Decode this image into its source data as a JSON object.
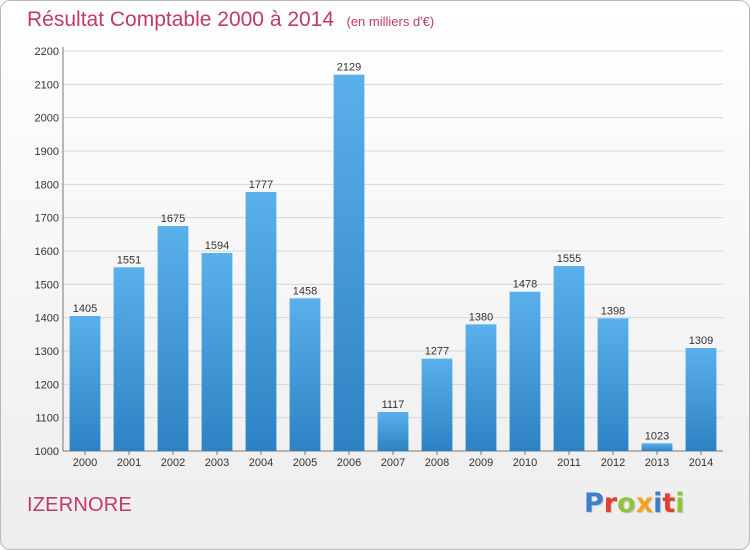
{
  "chart_data": {
    "type": "bar",
    "title": "Résultat Comptable 2000 à 2014",
    "subtitle": "(en milliers d'€)",
    "categories": [
      "2000",
      "2001",
      "2002",
      "2003",
      "2004",
      "2005",
      "2006",
      "2007",
      "2008",
      "2009",
      "2010",
      "2011",
      "2012",
      "2013",
      "2014"
    ],
    "values": [
      1405,
      1551,
      1675,
      1594,
      1777,
      1458,
      2129,
      1117,
      1277,
      1380,
      1478,
      1555,
      1398,
      1023,
      1309
    ],
    "ylim": [
      1000,
      2200
    ],
    "yticks": [
      1000,
      1100,
      1200,
      1300,
      1400,
      1500,
      1600,
      1700,
      1800,
      1900,
      2000,
      2100,
      2200
    ],
    "xlabel": "",
    "ylabel": "",
    "grid": true,
    "data_labels": true,
    "colors": {
      "bar_light": "#5ab0ea",
      "bar_dark": "#2d82c4",
      "title": "#c0396b",
      "grid": "#d6d6d6",
      "text": "#333333"
    }
  },
  "footer": {
    "commune": "IZERNORE"
  },
  "logo": {
    "text": "Proxiti",
    "letters": [
      {
        "ch": "P",
        "color": "#3a7fc7"
      },
      {
        "ch": "r",
        "color": "#e0402e"
      },
      {
        "ch": "o",
        "color": "#8cc63f"
      },
      {
        "ch": "x",
        "color": "#f2a31b"
      },
      {
        "ch": "i",
        "color": "#3a7fc7"
      },
      {
        "ch": "t",
        "color": "#e0402e"
      },
      {
        "ch": "i",
        "color": "#8cc63f"
      }
    ]
  }
}
